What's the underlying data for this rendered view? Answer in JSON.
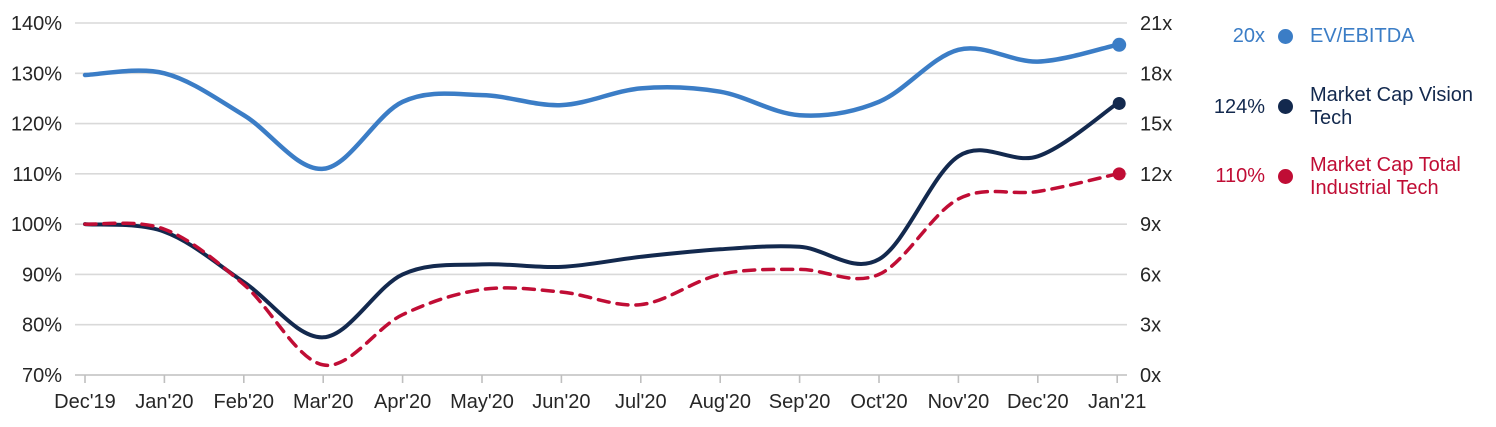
{
  "page": {
    "background": "#ffffff"
  },
  "colors": {
    "ev_ebitda_blue": "#3b7dc6",
    "vision_tech_navy": "#13294e",
    "industrial_tech_red": "#c00d35",
    "gridline": "#d9d9d9",
    "axis_line": "#bfbfbf",
    "axis_text": "#262626"
  },
  "chart_data": {
    "type": "line",
    "title": "",
    "grid": true,
    "legend_position": "right",
    "categories": [
      "Dec'19",
      "Jan'20",
      "Feb'20",
      "Mar'20",
      "Apr'20",
      "May'20",
      "Jun'20",
      "Jul'20",
      "Aug'20",
      "Sep'20",
      "Oct'20",
      "Nov'20",
      "Dec'20",
      "Jan'21"
    ],
    "left_axis": {
      "unit": "%",
      "min": 70,
      "max": 140,
      "tick_step": 10,
      "labels": [
        "140%",
        "130%",
        "120%",
        "110%",
        "100%",
        "90%",
        "80%",
        "70%"
      ]
    },
    "right_axis": {
      "unit": "x",
      "min": 0,
      "max": 21,
      "tick_step": 3,
      "labels": [
        "21x",
        "18x",
        "15x",
        "12x",
        "9x",
        "6x",
        "3x",
        "0x"
      ]
    },
    "series": [
      {
        "name": "EV/EBITDA",
        "axis": "right",
        "style": "solid",
        "color": "#3b7dc6",
        "end_label": "20x",
        "values": [
          17.9,
          18.0,
          15.5,
          12.3,
          16.3,
          16.7,
          16.1,
          17.1,
          16.9,
          15.5,
          16.3,
          19.4,
          18.7,
          19.7
        ]
      },
      {
        "name": "Market Cap Vision Tech",
        "axis": "left",
        "style": "solid",
        "color": "#13294e",
        "end_label": "124%",
        "values": [
          100,
          98.5,
          88.5,
          77.5,
          90,
          92,
          91.5,
          93.5,
          95,
          95.5,
          93,
          113.5,
          113.5,
          124
        ]
      },
      {
        "name": "Market Cap Total Industrial Tech",
        "axis": "left",
        "style": "dashed",
        "color": "#c00d35",
        "end_label": "110%",
        "values": [
          100,
          99,
          88,
          72,
          82,
          87,
          86.5,
          84,
          90,
          91,
          90,
          105,
          106.5,
          110
        ]
      }
    ]
  },
  "legend": {
    "items": [
      {
        "value": "20x",
        "label": "EV/EBITDA",
        "color": "#3b7dc6"
      },
      {
        "value": "124%",
        "label": "Market Cap Vision Tech",
        "color": "#13294e"
      },
      {
        "value": "110%",
        "label": "Market Cap Total Industrial Tech",
        "color": "#c00d35"
      }
    ]
  }
}
